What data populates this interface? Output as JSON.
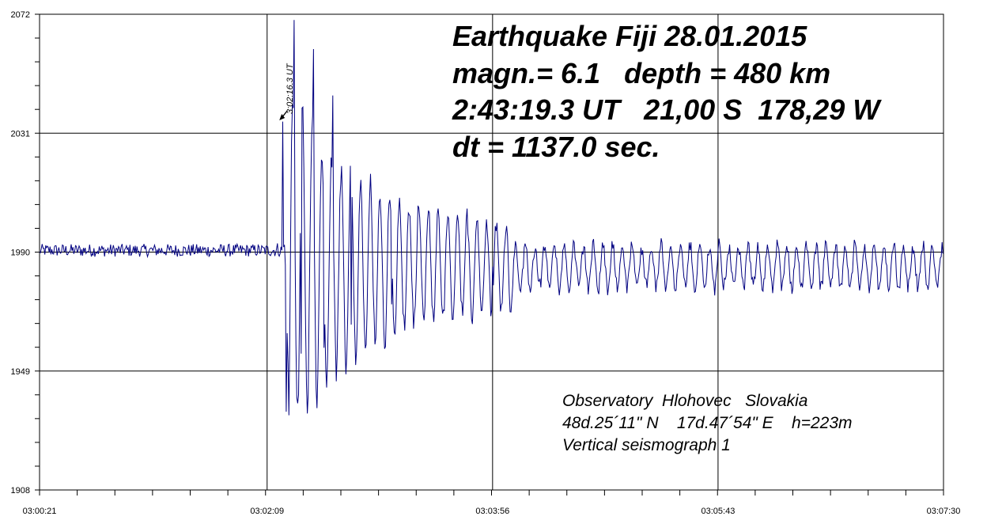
{
  "chart_data": {
    "type": "line",
    "title_lines": [
      "Earthquake Fiji 28.01.2015",
      "magn.= 6.1   depth = 480 km",
      "2:43:19.3 UT   21,00 S  178,29 W",
      "dt = 1137.0 sec."
    ],
    "info_lines": [
      "Observatory  Hlohovec   Slovakia",
      "48d.25´11\" N    17d.47´54\" E    h=223m",
      "Vertical seismograph 1"
    ],
    "marker_label": "3:02:16.3 UT",
    "marker_time": "03:02:16.3",
    "x_range": [
      "03:00:21",
      "03:07:30"
    ],
    "ylim": [
      1908,
      2072
    ],
    "x_ticks": [
      "03:00:21",
      "03:02:09",
      "03:03:56",
      "03:05:43",
      "03:07:30"
    ],
    "y_ticks": [
      "2072",
      "2031",
      "1990",
      "1949",
      "1908"
    ],
    "grid": true,
    "baseline": 1990,
    "series": [
      {
        "color": "#000080",
        "description": "vertical seismogram trace (counts); quiet ~1990 baseline before P-arrival, strong oscillation after 03:02:16, gradual decay",
        "key_points": [
          {
            "t": "03:00:21",
            "v": 1990
          },
          {
            "t": "03:02:14",
            "v": 1993
          },
          {
            "t": "03:02:16.3",
            "v": 2035
          },
          {
            "t": "03:02:18",
            "v": 1935
          },
          {
            "t": "03:02:22",
            "v": 2070
          },
          {
            "t": "03:02:25",
            "v": 1955
          },
          {
            "t": "03:02:31",
            "v": 2060
          },
          {
            "t": "03:02:36",
            "v": 1957
          },
          {
            "t": "03:02:40",
            "v": 2044
          },
          {
            "t": "03:02:49",
            "v": 1965
          },
          {
            "t": "03:02:58",
            "v": 2017
          },
          {
            "t": "03:03:08",
            "v": 1972
          },
          {
            "t": "03:03:30",
            "v": 2005
          },
          {
            "t": "03:03:56",
            "v": 1985
          },
          {
            "t": "03:07:30",
            "v": 1993
          }
        ]
      }
    ]
  }
}
